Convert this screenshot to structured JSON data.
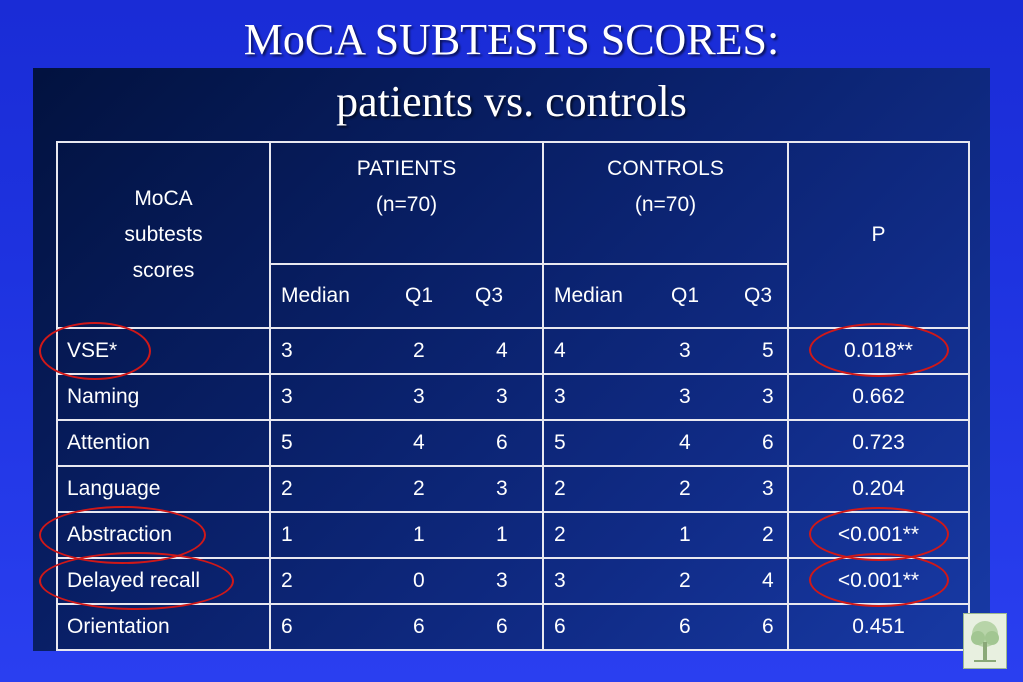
{
  "slide": {
    "title_line1": "MoCA SUBTESTS SCORES:",
    "title_line2": "patients vs. controls"
  },
  "table": {
    "header": {
      "row_label_lines": [
        "MoCA",
        "subtests",
        "scores"
      ],
      "patients_lines": [
        "PATIENTS",
        "(n=70)"
      ],
      "controls_lines": [
        "CONTROLS",
        "(n=70)"
      ],
      "p_label": "P",
      "sub_headers": [
        "Median",
        "Q1",
        "Q3"
      ]
    },
    "rows": [
      {
        "label": "VSE*",
        "patients": [
          "3",
          "2",
          "4"
        ],
        "controls": [
          "4",
          "3",
          "5"
        ],
        "p": "0.018**"
      },
      {
        "label": "Naming",
        "patients": [
          "3",
          "3",
          "3"
        ],
        "controls": [
          "3",
          "3",
          "3"
        ],
        "p": "0.662"
      },
      {
        "label": "Attention",
        "patients": [
          "5",
          "4",
          "6"
        ],
        "controls": [
          "5",
          "4",
          "6"
        ],
        "p": "0.723"
      },
      {
        "label": "Language",
        "patients": [
          "2",
          "2",
          "3"
        ],
        "controls": [
          "2",
          "2",
          "3"
        ],
        "p": "0.204"
      },
      {
        "label": "Abstraction",
        "patients": [
          "1",
          "1",
          "1"
        ],
        "controls": [
          "2",
          "1",
          "2"
        ],
        "p": "<0.001**"
      },
      {
        "label": "Delayed recall",
        "patients": [
          "2",
          "0",
          "3"
        ],
        "controls": [
          "3",
          "2",
          "4"
        ],
        "p": "<0.001**"
      },
      {
        "label": "Orientation",
        "patients": [
          "6",
          "6",
          "6"
        ],
        "controls": [
          "6",
          "6",
          "6"
        ],
        "p": "0.451"
      }
    ]
  },
  "highlight": {
    "circle_color": "#d01818",
    "circled_rows": [
      "VSE*",
      "Abstraction",
      "Delayed recall"
    ]
  },
  "icons": {
    "corner_logo": "tree-logo-icon"
  }
}
